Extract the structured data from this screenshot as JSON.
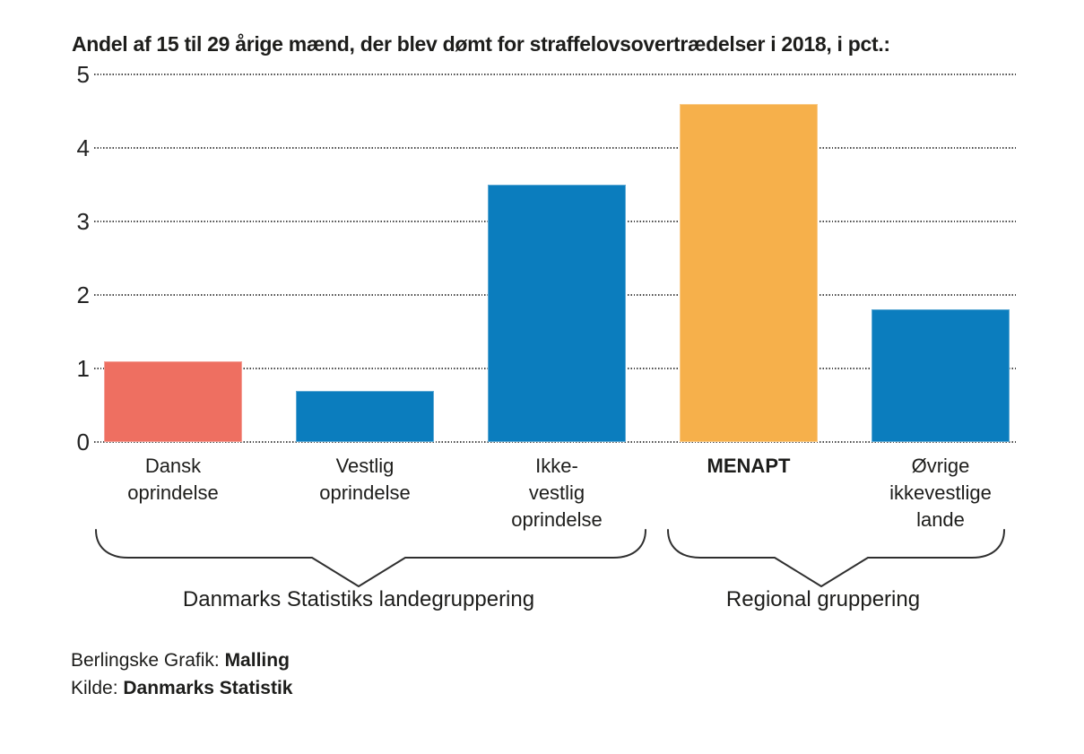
{
  "chart_data": {
    "type": "bar",
    "title": "Andel af 15 til 29 årige mænd, der blev dømt for straffelovsovertrædelser i 2018, i pct.:",
    "categories": [
      "Dansk oprindelse",
      "Vestlig oprindelse",
      "Ikke-vestlig oprindelse",
      "MENAPT",
      "Øvrige ikkevestlige lande"
    ],
    "values": [
      1.1,
      0.7,
      3.5,
      4.6,
      1.8
    ],
    "tick_labels": [
      {
        "text": "Dansk\noprindelse",
        "bold": false
      },
      {
        "text": "Vestlig\noprindelse",
        "bold": false
      },
      {
        "text": "Ikke-\nvestlig\noprindelse",
        "bold": false
      },
      {
        "text": "MENAPT",
        "bold": true
      },
      {
        "text": "Øvrige\nikkevestlige\nlande",
        "bold": false
      }
    ],
    "bar_colors": [
      "#ee6f61",
      "#0b7dbe",
      "#0b7dbe",
      "#f6b04b",
      "#0b7dbe"
    ],
    "highlight_category": "MENAPT",
    "xlabel": "",
    "ylabel": "",
    "ylim": [
      0,
      5
    ],
    "yticks": [
      0,
      1,
      2,
      3,
      4,
      5
    ],
    "grid": "horizontal-dotted",
    "legend": "none",
    "groups": [
      {
        "label": "Danmarks Statistiks landegruppering",
        "bars": [
          0,
          1,
          2
        ]
      },
      {
        "label": "Regional gruppering",
        "bars": [
          3,
          4
        ]
      }
    ]
  },
  "colors": {
    "default_bar": "#0b7dbe",
    "danish_bar": "#ee6f61",
    "menapt_bar": "#f6b04b",
    "text": "#1d1d1b",
    "gridline": "#474747"
  },
  "footer": {
    "credit_prefix": "Berlingske Grafik: ",
    "credit_name": "Malling",
    "source_prefix": "Kilde: ",
    "source_name": "Danmarks Statistik"
  }
}
